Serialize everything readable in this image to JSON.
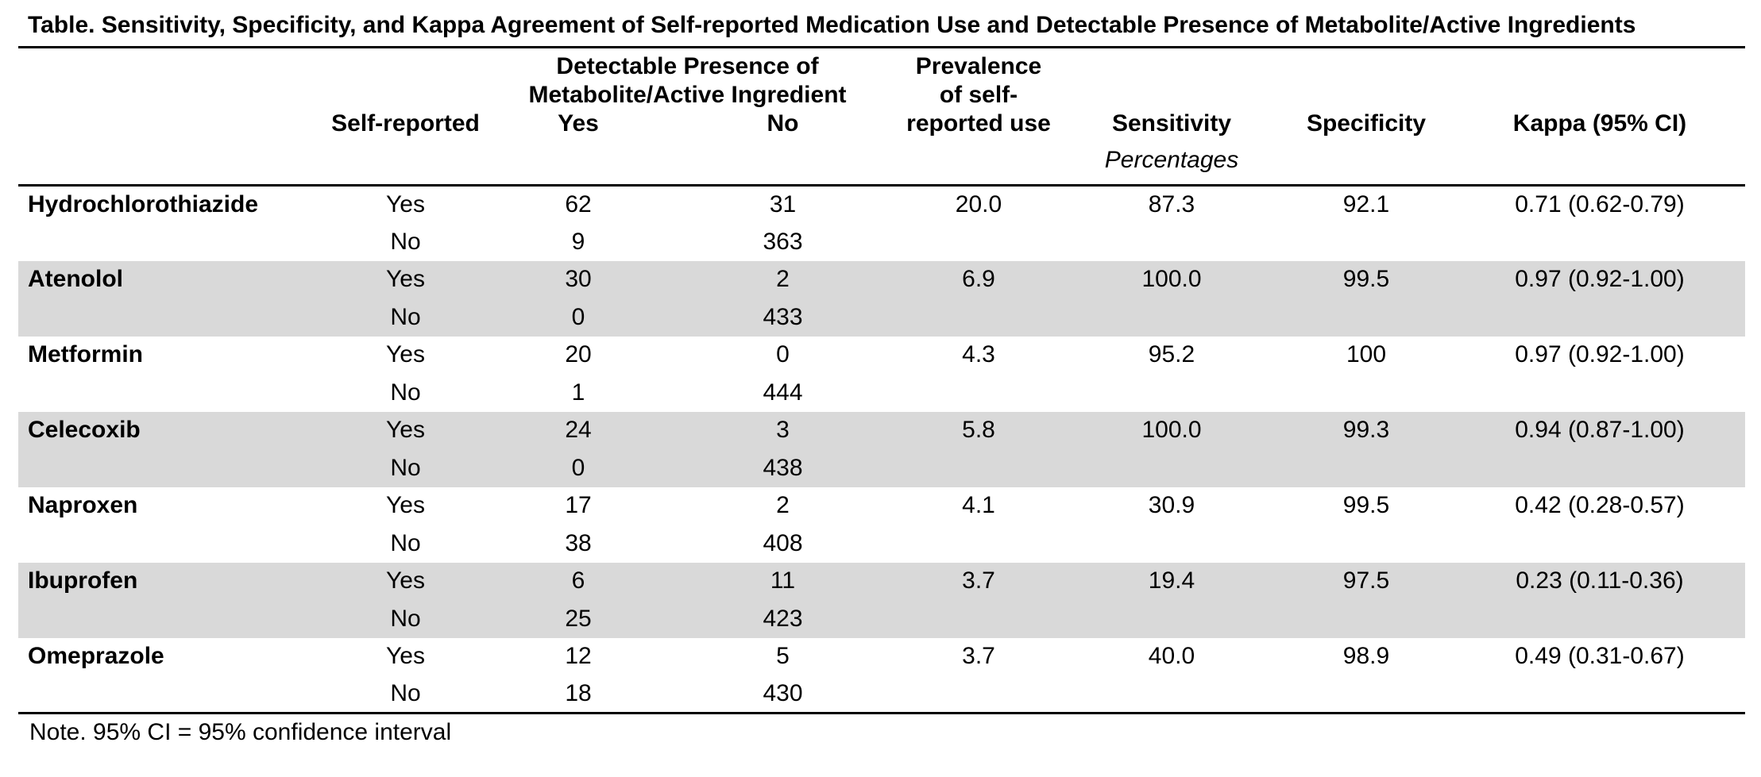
{
  "title": "Table. Sensitivity, Specificity, and Kappa Agreement of Self-reported Medication Use and Detectable Presence of Metabolite/Active Ingredients",
  "note": "Note. 95% CI = 95% confidence interval",
  "colors": {
    "background": "#ffffff",
    "text": "#000000",
    "stripe": "#d9d9d9",
    "rule": "#000000"
  },
  "table": {
    "headers": {
      "self_reported": "Self-reported",
      "detectable_presence_lines": [
        "Detectable Presence of",
        "Metabolite/Active Ingredient"
      ],
      "yes": "Yes",
      "no": "No",
      "prevalence_lines": [
        "Prevalence",
        "of self-",
        "reported use"
      ],
      "sensitivity": "Sensitivity",
      "specificity": "Specificity",
      "kappa": "Kappa (95% CI)",
      "percentages_label": "Percentages"
    },
    "rows": [
      {
        "name": "Hydrochlorothiazide",
        "shaded": false,
        "yes_row": {
          "label": "Yes",
          "detect_yes": "62",
          "detect_no": "31",
          "prevalence": "20.0",
          "sensitivity": "87.3",
          "specificity": "92.1",
          "kappa": "0.71 (0.62-0.79)"
        },
        "no_row": {
          "label": "No",
          "detect_yes": "9",
          "detect_no": "363"
        }
      },
      {
        "name": "Atenolol",
        "shaded": true,
        "yes_row": {
          "label": "Yes",
          "detect_yes": "30",
          "detect_no": "2",
          "prevalence": "6.9",
          "sensitivity": "100.0",
          "specificity": "99.5",
          "kappa": "0.97 (0.92-1.00)"
        },
        "no_row": {
          "label": "No",
          "detect_yes": "0",
          "detect_no": "433"
        }
      },
      {
        "name": "Metformin",
        "shaded": false,
        "yes_row": {
          "label": "Yes",
          "detect_yes": "20",
          "detect_no": "0",
          "prevalence": "4.3",
          "sensitivity": "95.2",
          "specificity": "100",
          "kappa": "0.97 (0.92-1.00)"
        },
        "no_row": {
          "label": "No",
          "detect_yes": "1",
          "detect_no": "444"
        }
      },
      {
        "name": "Celecoxib",
        "shaded": true,
        "yes_row": {
          "label": "Yes",
          "detect_yes": "24",
          "detect_no": "3",
          "prevalence": "5.8",
          "sensitivity": "100.0",
          "specificity": "99.3",
          "kappa": "0.94 (0.87-1.00)"
        },
        "no_row": {
          "label": "No",
          "detect_yes": "0",
          "detect_no": "438"
        }
      },
      {
        "name": "Naproxen",
        "shaded": false,
        "yes_row": {
          "label": "Yes",
          "detect_yes": "17",
          "detect_no": "2",
          "prevalence": "4.1",
          "sensitivity": "30.9",
          "specificity": "99.5",
          "kappa": "0.42 (0.28-0.57)"
        },
        "no_row": {
          "label": "No",
          "detect_yes": "38",
          "detect_no": "408"
        }
      },
      {
        "name": "Ibuprofen",
        "shaded": true,
        "yes_row": {
          "label": "Yes",
          "detect_yes": "6",
          "detect_no": "11",
          "prevalence": "3.7",
          "sensitivity": "19.4",
          "specificity": "97.5",
          "kappa": "0.23 (0.11-0.36)"
        },
        "no_row": {
          "label": "No",
          "detect_yes": "25",
          "detect_no": "423"
        }
      },
      {
        "name": "Omeprazole",
        "shaded": false,
        "yes_row": {
          "label": "Yes",
          "detect_yes": "12",
          "detect_no": "5",
          "prevalence": "3.7",
          "sensitivity": "40.0",
          "specificity": "98.9",
          "kappa": "0.49 (0.31-0.67)"
        },
        "no_row": {
          "label": "No",
          "detect_yes": "18",
          "detect_no": "430"
        }
      }
    ]
  }
}
